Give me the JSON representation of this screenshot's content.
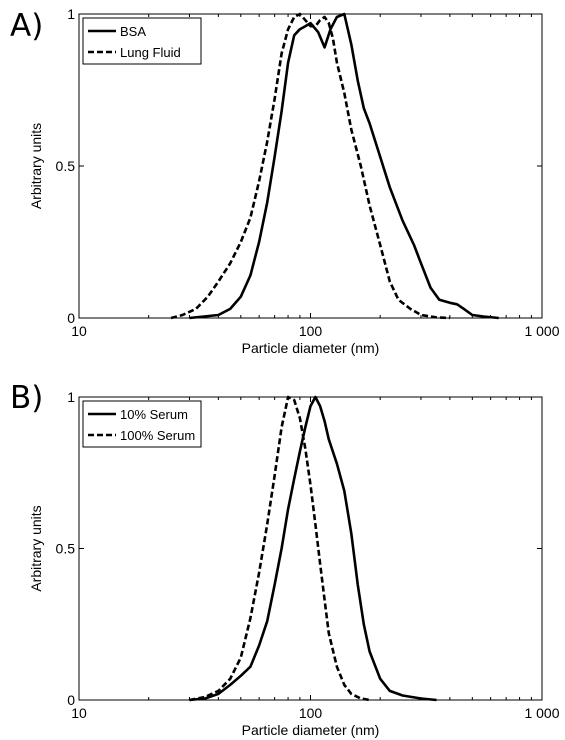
{
  "chart_data": [
    {
      "panel_label": "A)",
      "type": "line",
      "xlabel": "Particle diameter (nm)",
      "ylabel": "Arbitrary units",
      "xscale": "log",
      "xlim": [
        10,
        1000
      ],
      "ylim": [
        0,
        1
      ],
      "xticks": [
        10,
        100,
        1000
      ],
      "xticklabels": [
        "10",
        "100",
        "1 000"
      ],
      "yticks": [
        0,
        0.5,
        1
      ],
      "yticklabels": [
        "0",
        "0.5",
        "1"
      ],
      "grid": false,
      "legend": "top-left",
      "series": [
        {
          "name": "BSA",
          "style": "solid",
          "color": "#000000",
          "points": [
            [
              30,
              0
            ],
            [
              40,
              0.01
            ],
            [
              45,
              0.03
            ],
            [
              50,
              0.07
            ],
            [
              55,
              0.14
            ],
            [
              60,
              0.25
            ],
            [
              65,
              0.38
            ],
            [
              70,
              0.53
            ],
            [
              75,
              0.68
            ],
            [
              80,
              0.84
            ],
            [
              85,
              0.93
            ],
            [
              90,
              0.95
            ],
            [
              95,
              0.96
            ],
            [
              100,
              0.97
            ],
            [
              108,
              0.94
            ],
            [
              115,
              0.89
            ],
            [
              122,
              0.95
            ],
            [
              130,
              0.99
            ],
            [
              140,
              1.0
            ],
            [
              150,
              0.9
            ],
            [
              160,
              0.78
            ],
            [
              170,
              0.69
            ],
            [
              180,
              0.64
            ],
            [
              200,
              0.53
            ],
            [
              220,
              0.43
            ],
            [
              250,
              0.32
            ],
            [
              280,
              0.24
            ],
            [
              300,
              0.18
            ],
            [
              330,
              0.1
            ],
            [
              360,
              0.06
            ],
            [
              400,
              0.05
            ],
            [
              430,
              0.045
            ],
            [
              460,
              0.03
            ],
            [
              500,
              0.01
            ],
            [
              560,
              0.005
            ],
            [
              650,
              0
            ]
          ]
        },
        {
          "name": "Lung Fluid",
          "style": "dashed",
          "color": "#000000",
          "points": [
            [
              25,
              0
            ],
            [
              28,
              0.01
            ],
            [
              32,
              0.03
            ],
            [
              36,
              0.07
            ],
            [
              40,
              0.12
            ],
            [
              45,
              0.18
            ],
            [
              50,
              0.25
            ],
            [
              55,
              0.33
            ],
            [
              60,
              0.45
            ],
            [
              65,
              0.58
            ],
            [
              70,
              0.72
            ],
            [
              75,
              0.87
            ],
            [
              80,
              0.95
            ],
            [
              85,
              0.99
            ],
            [
              90,
              1.0
            ],
            [
              95,
              0.98
            ],
            [
              100,
              0.96
            ],
            [
              105,
              0.96
            ],
            [
              110,
              0.98
            ],
            [
              115,
              0.99
            ],
            [
              120,
              0.97
            ],
            [
              125,
              0.92
            ],
            [
              130,
              0.84
            ],
            [
              140,
              0.74
            ],
            [
              150,
              0.62
            ],
            [
              165,
              0.5
            ],
            [
              180,
              0.37
            ],
            [
              200,
              0.24
            ],
            [
              220,
              0.12
            ],
            [
              240,
              0.06
            ],
            [
              270,
              0.03
            ],
            [
              300,
              0.01
            ],
            [
              350,
              0.002
            ],
            [
              400,
              0
            ]
          ]
        }
      ]
    },
    {
      "panel_label": "B)",
      "type": "line",
      "xlabel": "Particle diameter (nm)",
      "ylabel": "Arbitrary units",
      "xscale": "log",
      "xlim": [
        10,
        1000
      ],
      "ylim": [
        0,
        1
      ],
      "xticks": [
        10,
        100,
        1000
      ],
      "xticklabels": [
        "10",
        "100",
        "1 000"
      ],
      "yticks": [
        0,
        0.5,
        1
      ],
      "yticklabels": [
        "0",
        "0.5",
        "1"
      ],
      "grid": false,
      "legend": "top-left",
      "series": [
        {
          "name": "10% Serum",
          "style": "solid",
          "color": "#000000",
          "points": [
            [
              30,
              0
            ],
            [
              35,
              0.005
            ],
            [
              40,
              0.02
            ],
            [
              45,
              0.05
            ],
            [
              50,
              0.08
            ],
            [
              55,
              0.11
            ],
            [
              60,
              0.18
            ],
            [
              65,
              0.26
            ],
            [
              70,
              0.38
            ],
            [
              75,
              0.5
            ],
            [
              80,
              0.63
            ],
            [
              85,
              0.73
            ],
            [
              90,
              0.82
            ],
            [
              95,
              0.9
            ],
            [
              100,
              0.97
            ],
            [
              105,
              1.0
            ],
            [
              110,
              0.97
            ],
            [
              115,
              0.92
            ],
            [
              120,
              0.86
            ],
            [
              130,
              0.78
            ],
            [
              140,
              0.69
            ],
            [
              150,
              0.55
            ],
            [
              160,
              0.38
            ],
            [
              170,
              0.25
            ],
            [
              180,
              0.16
            ],
            [
              200,
              0.07
            ],
            [
              220,
              0.03
            ],
            [
              250,
              0.015
            ],
            [
              300,
              0.005
            ],
            [
              350,
              0
            ]
          ]
        },
        {
          "name": "100% Serum",
          "style": "dashed",
          "color": "#000000",
          "points": [
            [
              30,
              0
            ],
            [
              35,
              0.01
            ],
            [
              40,
              0.03
            ],
            [
              45,
              0.07
            ],
            [
              50,
              0.14
            ],
            [
              55,
              0.27
            ],
            [
              60,
              0.42
            ],
            [
              65,
              0.58
            ],
            [
              70,
              0.74
            ],
            [
              75,
              0.9
            ],
            [
              80,
              1.0
            ],
            [
              85,
              0.99
            ],
            [
              90,
              0.93
            ],
            [
              95,
              0.83
            ],
            [
              100,
              0.71
            ],
            [
              105,
              0.58
            ],
            [
              110,
              0.45
            ],
            [
              115,
              0.33
            ],
            [
              120,
              0.22
            ],
            [
              130,
              0.11
            ],
            [
              140,
              0.05
            ],
            [
              150,
              0.02
            ],
            [
              165,
              0.005
            ],
            [
              180,
              0
            ]
          ]
        }
      ]
    }
  ]
}
